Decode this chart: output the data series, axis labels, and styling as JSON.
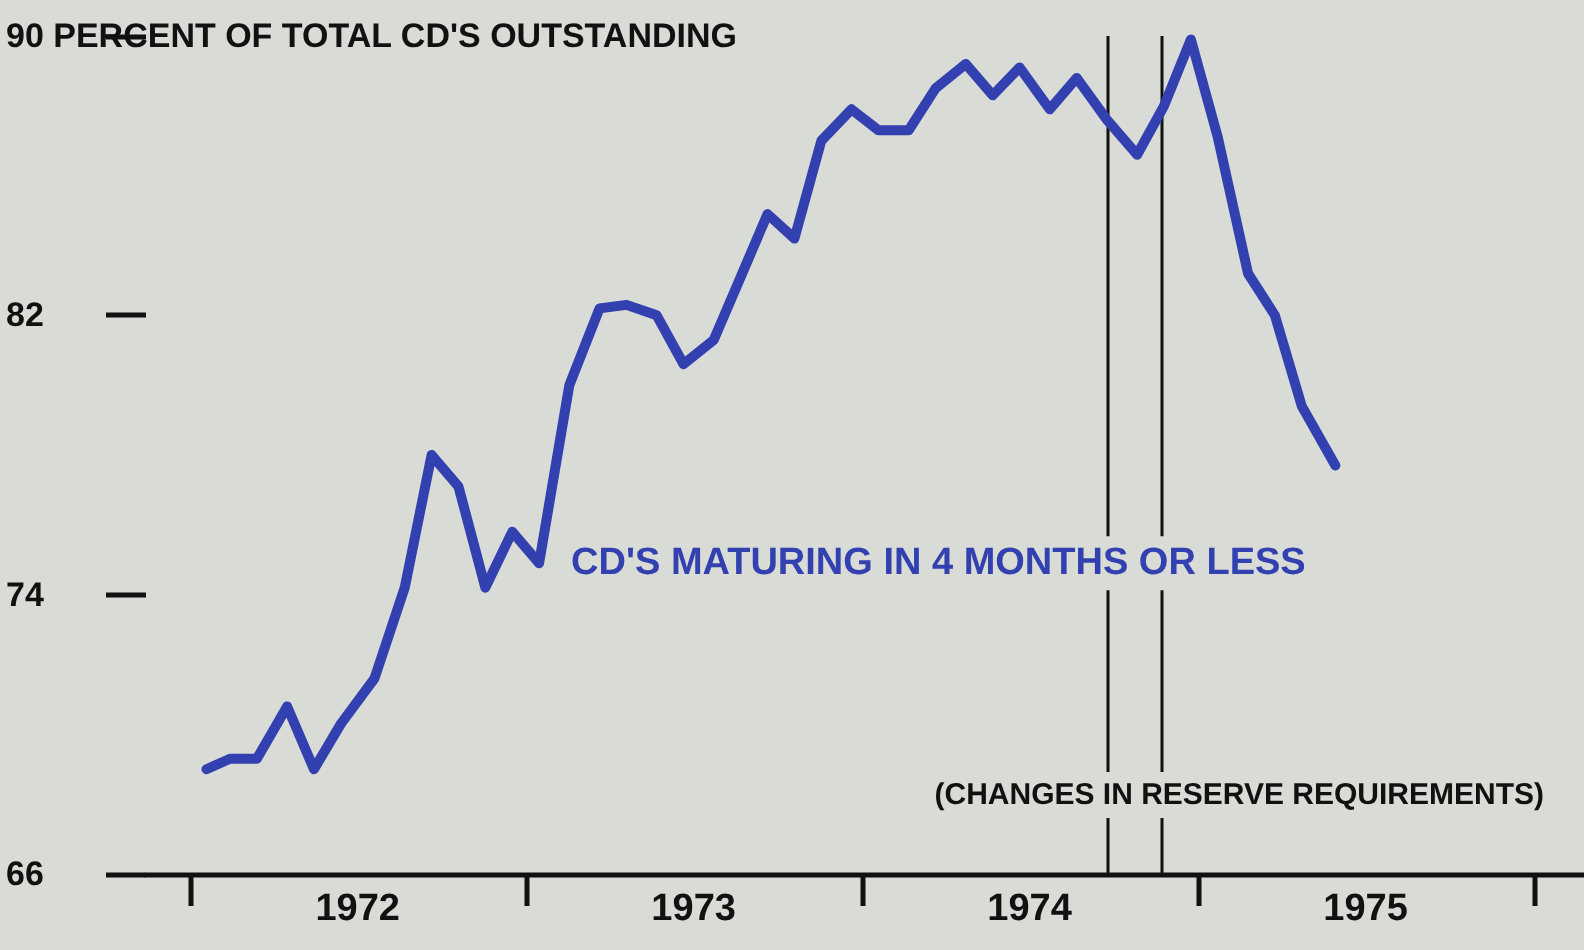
{
  "chart_data": {
    "type": "line",
    "x": [
      1972.05,
      1972.12,
      1972.2,
      1972.29,
      1972.37,
      1972.45,
      1972.55,
      1972.64,
      1972.72,
      1972.8,
      1972.88,
      1972.96,
      1973.04,
      1973.13,
      1973.22,
      1973.3,
      1973.39,
      1973.47,
      1973.56,
      1973.64,
      1973.72,
      1973.8,
      1973.88,
      1973.97,
      1974.05,
      1974.14,
      1974.22,
      1974.31,
      1974.39,
      1974.47,
      1974.56,
      1974.64,
      1974.73,
      1974.82,
      1974.9,
      1974.98,
      1975.06,
      1975.15,
      1975.23,
      1975.31,
      1975.41
    ],
    "series": [
      {
        "name": "CD'S MATURING IN 4 MONTHS OR LESS",
        "color": "#3340b0",
        "values": [
          69.0,
          69.3,
          69.3,
          70.8,
          69.0,
          70.3,
          71.6,
          74.2,
          78.0,
          77.1,
          74.2,
          75.8,
          74.9,
          80.0,
          82.2,
          82.3,
          82.0,
          80.6,
          81.3,
          83.1,
          84.9,
          84.2,
          87.0,
          87.9,
          87.3,
          87.3,
          88.5,
          89.2,
          88.3,
          89.1,
          87.9,
          88.8,
          87.6,
          86.6,
          88.0,
          89.9,
          87.1,
          83.2,
          82.0,
          79.4,
          77.7
        ]
      }
    ],
    "xlim": [
      1971.87,
      1976.15
    ],
    "xticks": [
      {
        "value": 1972,
        "label": null
      },
      {
        "value": 1972.5,
        "label": "1972"
      },
      {
        "value": 1973,
        "label": null
      },
      {
        "value": 1973.5,
        "label": "1973"
      },
      {
        "value": 1974,
        "label": null
      },
      {
        "value": 1974.5,
        "label": "1974"
      },
      {
        "value": 1975,
        "label": null
      },
      {
        "value": 1975.5,
        "label": "1975"
      },
      {
        "value": 1976,
        "label": null
      }
    ],
    "ylim": [
      66,
      90
    ],
    "yticks": [
      66,
      74,
      82,
      {
        "value": 90,
        "label": "90 PERCENT OF TOTAL CD'S OUTSTANDING"
      }
    ],
    "ref_lines": [
      {
        "axis": "x",
        "value": 1974.73,
        "color": "#111111"
      },
      {
        "axis": "x",
        "value": 1974.89,
        "color": "#111111"
      }
    ],
    "annotations": [
      "(CHANGES IN RESERVE REQUIREMENTS)"
    ],
    "grid": false,
    "legend": false,
    "marker": "none",
    "line_style": "solid"
  }
}
